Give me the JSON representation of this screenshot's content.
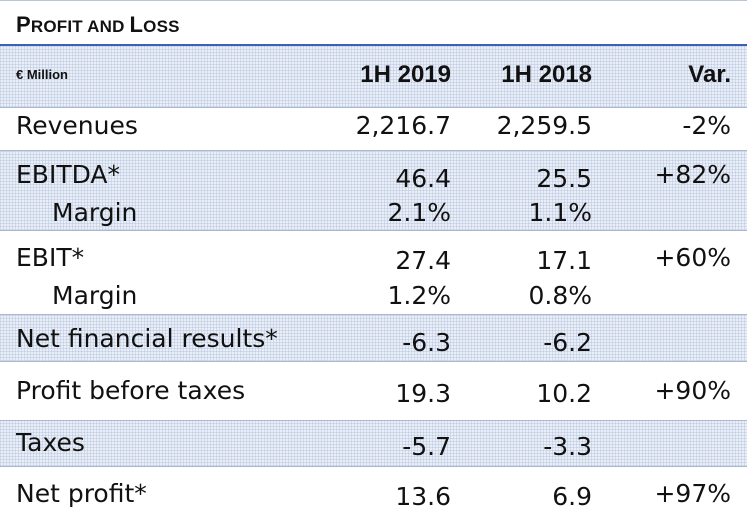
{
  "title": {
    "first_big": "P",
    "first_small": "ROFIT AND ",
    "second_big": "L",
    "second_small": "OSS"
  },
  "header": {
    "unit": "€ Million",
    "col1": "1H 2019",
    "col2": "1H 2018",
    "col3": "Var."
  },
  "rows": [
    {
      "label": "Revenues",
      "v2019": "2,216.7",
      "v2018": "2,259.5",
      "var": "-2%"
    },
    {
      "label": "EBITDA*",
      "v2019": "46.4",
      "v2018": "25.5",
      "var": "+82%"
    },
    {
      "label": "Margin",
      "v2019": "2.1%",
      "v2018": "1.1%",
      "var": ""
    },
    {
      "label": "EBIT*",
      "v2019": "27.4",
      "v2018": "17.1",
      "var": "+60%"
    },
    {
      "label": "Margin",
      "v2019": "1.2%",
      "v2018": "0.8%",
      "var": ""
    },
    {
      "label": "Net financial results*",
      "v2019": "-6.3",
      "v2018": "-6.2",
      "var": ""
    },
    {
      "label": "Profit before taxes",
      "v2019": "19.3",
      "v2018": "10.2",
      "var": "+90%"
    },
    {
      "label": "Taxes",
      "v2019": "-5.7",
      "v2018": "-3.3",
      "var": ""
    },
    {
      "label": "Net profit*",
      "v2019": "13.6",
      "v2018": "6.9",
      "var": "+97%"
    }
  ]
}
